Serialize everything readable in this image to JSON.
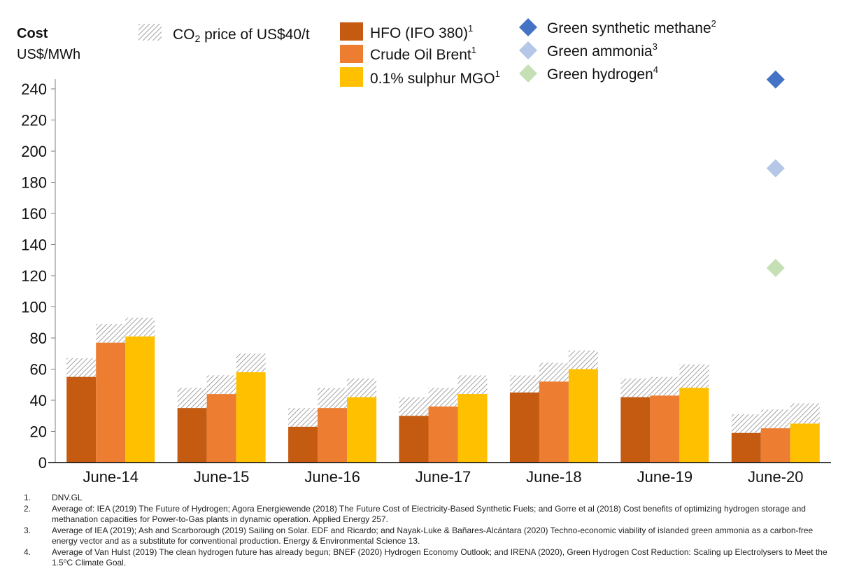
{
  "chart_data": {
    "type": "bar",
    "title": "Cost",
    "ylabel": "US$/MWh",
    "xlabel": "",
    "ylim": [
      0,
      240
    ],
    "yticks": [
      0,
      20,
      40,
      60,
      80,
      100,
      120,
      140,
      160,
      180,
      200,
      220,
      240
    ],
    "categories": [
      "June-14",
      "June-15",
      "June-16",
      "June-17",
      "June-18",
      "June-19",
      "June-20"
    ],
    "series": [
      {
        "name": "HFO (IFO 380)",
        "sup": "1",
        "color": "#C55A11",
        "values": [
          55,
          35,
          23,
          30,
          45,
          42,
          19
        ],
        "co2_total": [
          67,
          48,
          35,
          42,
          56,
          54,
          31
        ]
      },
      {
        "name": "Crude Oil Brent",
        "sup": "1",
        "color": "#ED7D31",
        "values": [
          77,
          44,
          35,
          36,
          52,
          43,
          22
        ],
        "co2_total": [
          89,
          56,
          48,
          48,
          64,
          55,
          34
        ]
      },
      {
        "name": "0.1% sulphur MGO",
        "sup": "1",
        "color": "#FFC000",
        "values": [
          81,
          58,
          42,
          44,
          60,
          48,
          25
        ],
        "co2_total": [
          93,
          70,
          54,
          56,
          72,
          63,
          38
        ]
      }
    ],
    "co2_legend": {
      "prefix": "CO",
      "sub": "2",
      "suffix": " price of US$40/t"
    },
    "points": [
      {
        "name": "Green synthetic methane",
        "sup": "2",
        "color": "#4472C4",
        "category": "June-20",
        "value": 246
      },
      {
        "name": "Green ammonia",
        "sup": "3",
        "color": "#B4C7E7",
        "category": "June-20",
        "value": 189
      },
      {
        "name": "Green hydrogen",
        "sup": "4",
        "color": "#C5E0B4",
        "category": "June-20",
        "value": 125
      }
    ]
  },
  "footnotes": [
    {
      "num": "1.",
      "text": "DNV.GL"
    },
    {
      "num": "2.",
      "text": "Average of: IEA (2019) The Future of Hydrogen; Agora Energiewende (2018) The Future Cost of Electricity-Based Synthetic Fuels; and Gorre et al (2018) Cost benefits of optimizing hydrogen storage and methanation capacities for Power-to-Gas plants in dynamic operation. Applied Energy 257."
    },
    {
      "num": "3.",
      "text": "Average of IEA (2019); Ash and Scarborough (2019) Sailing on Solar. EDF and Ricardo; and Nayak-Luke & Bañares-Alcántara (2020) Techno-economic viability of islanded green ammonia as a carbon-free energy vector and as a substitute for conventional production.  Energy & Environmental Science 13."
    },
    {
      "num": "4.",
      "text": "Average of Van Hulst (2019) The clean hydrogen future has already begun;  BNEF (2020) Hydrogen Economy Outlook; and IRENA (2020), Green Hydrogen Cost Reduction: Scaling up Electrolysers to Meet the 1.5⁰C Climate Goal."
    }
  ]
}
